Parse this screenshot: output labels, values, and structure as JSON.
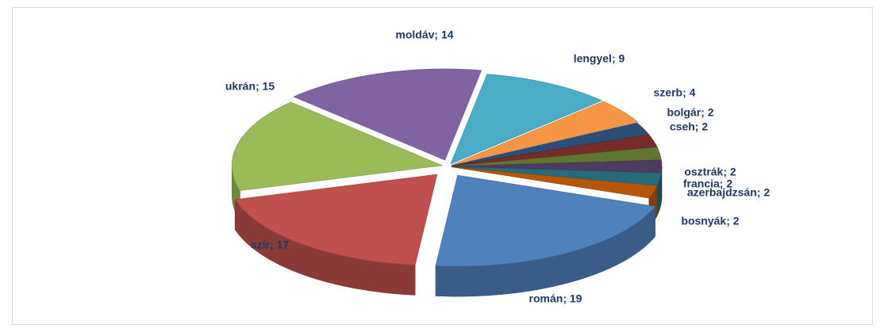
{
  "chart_data": {
    "type": "pie",
    "values": [
      19,
      17,
      15,
      14,
      9,
      4,
      2,
      2,
      2,
      2,
      2,
      2
    ],
    "value_labels": [
      "román; 19",
      "szír; 17",
      "ukrán; 15",
      "moldáv; 14",
      "lengyel; 9",
      "szerb; 4",
      "bolgár; 2",
      "cseh; 2",
      "osztrák; 2",
      "francia; 2",
      "azerbajdzsán; 2",
      "bosnyák; 2"
    ],
    "colors": [
      "#4f81bd",
      "#c0504d",
      "#9bbb59",
      "#8064a2",
      "#4bacc6",
      "#f79646",
      "#2c4d75",
      "#772c2a",
      "#5f7530",
      "#4d3b62",
      "#276a7c",
      "#b65708"
    ]
  }
}
